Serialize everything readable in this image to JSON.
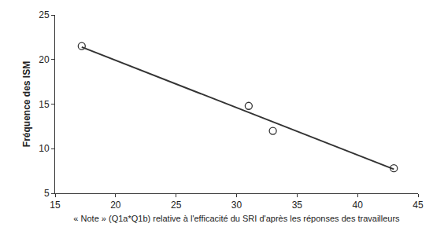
{
  "chart_data": {
    "type": "scatter",
    "x_label": "« Note » (Q1a*Q1b) relative à l'efficacité du SRI d'après les réponses des travailleurs",
    "y_label": "Fréquence des ISM",
    "series": [
      {
        "type": "scatter",
        "marker": "circle-open",
        "color": "#333333",
        "x": [
          17.2,
          31,
          33,
          43
        ],
        "values": [
          21.5,
          14.8,
          12,
          7.8
        ]
      },
      {
        "type": "line",
        "line_style": "solid",
        "color": "#333333",
        "x": [
          17.2,
          43
        ],
        "values": [
          21.4,
          7.7
        ]
      }
    ],
    "xlim": [
      15,
      45
    ],
    "xticks": [
      15,
      20,
      25,
      30,
      35,
      40,
      45
    ],
    "ylim": [
      5,
      25
    ],
    "yticks": [
      5,
      10,
      15,
      20,
      25
    ],
    "grid": false
  }
}
